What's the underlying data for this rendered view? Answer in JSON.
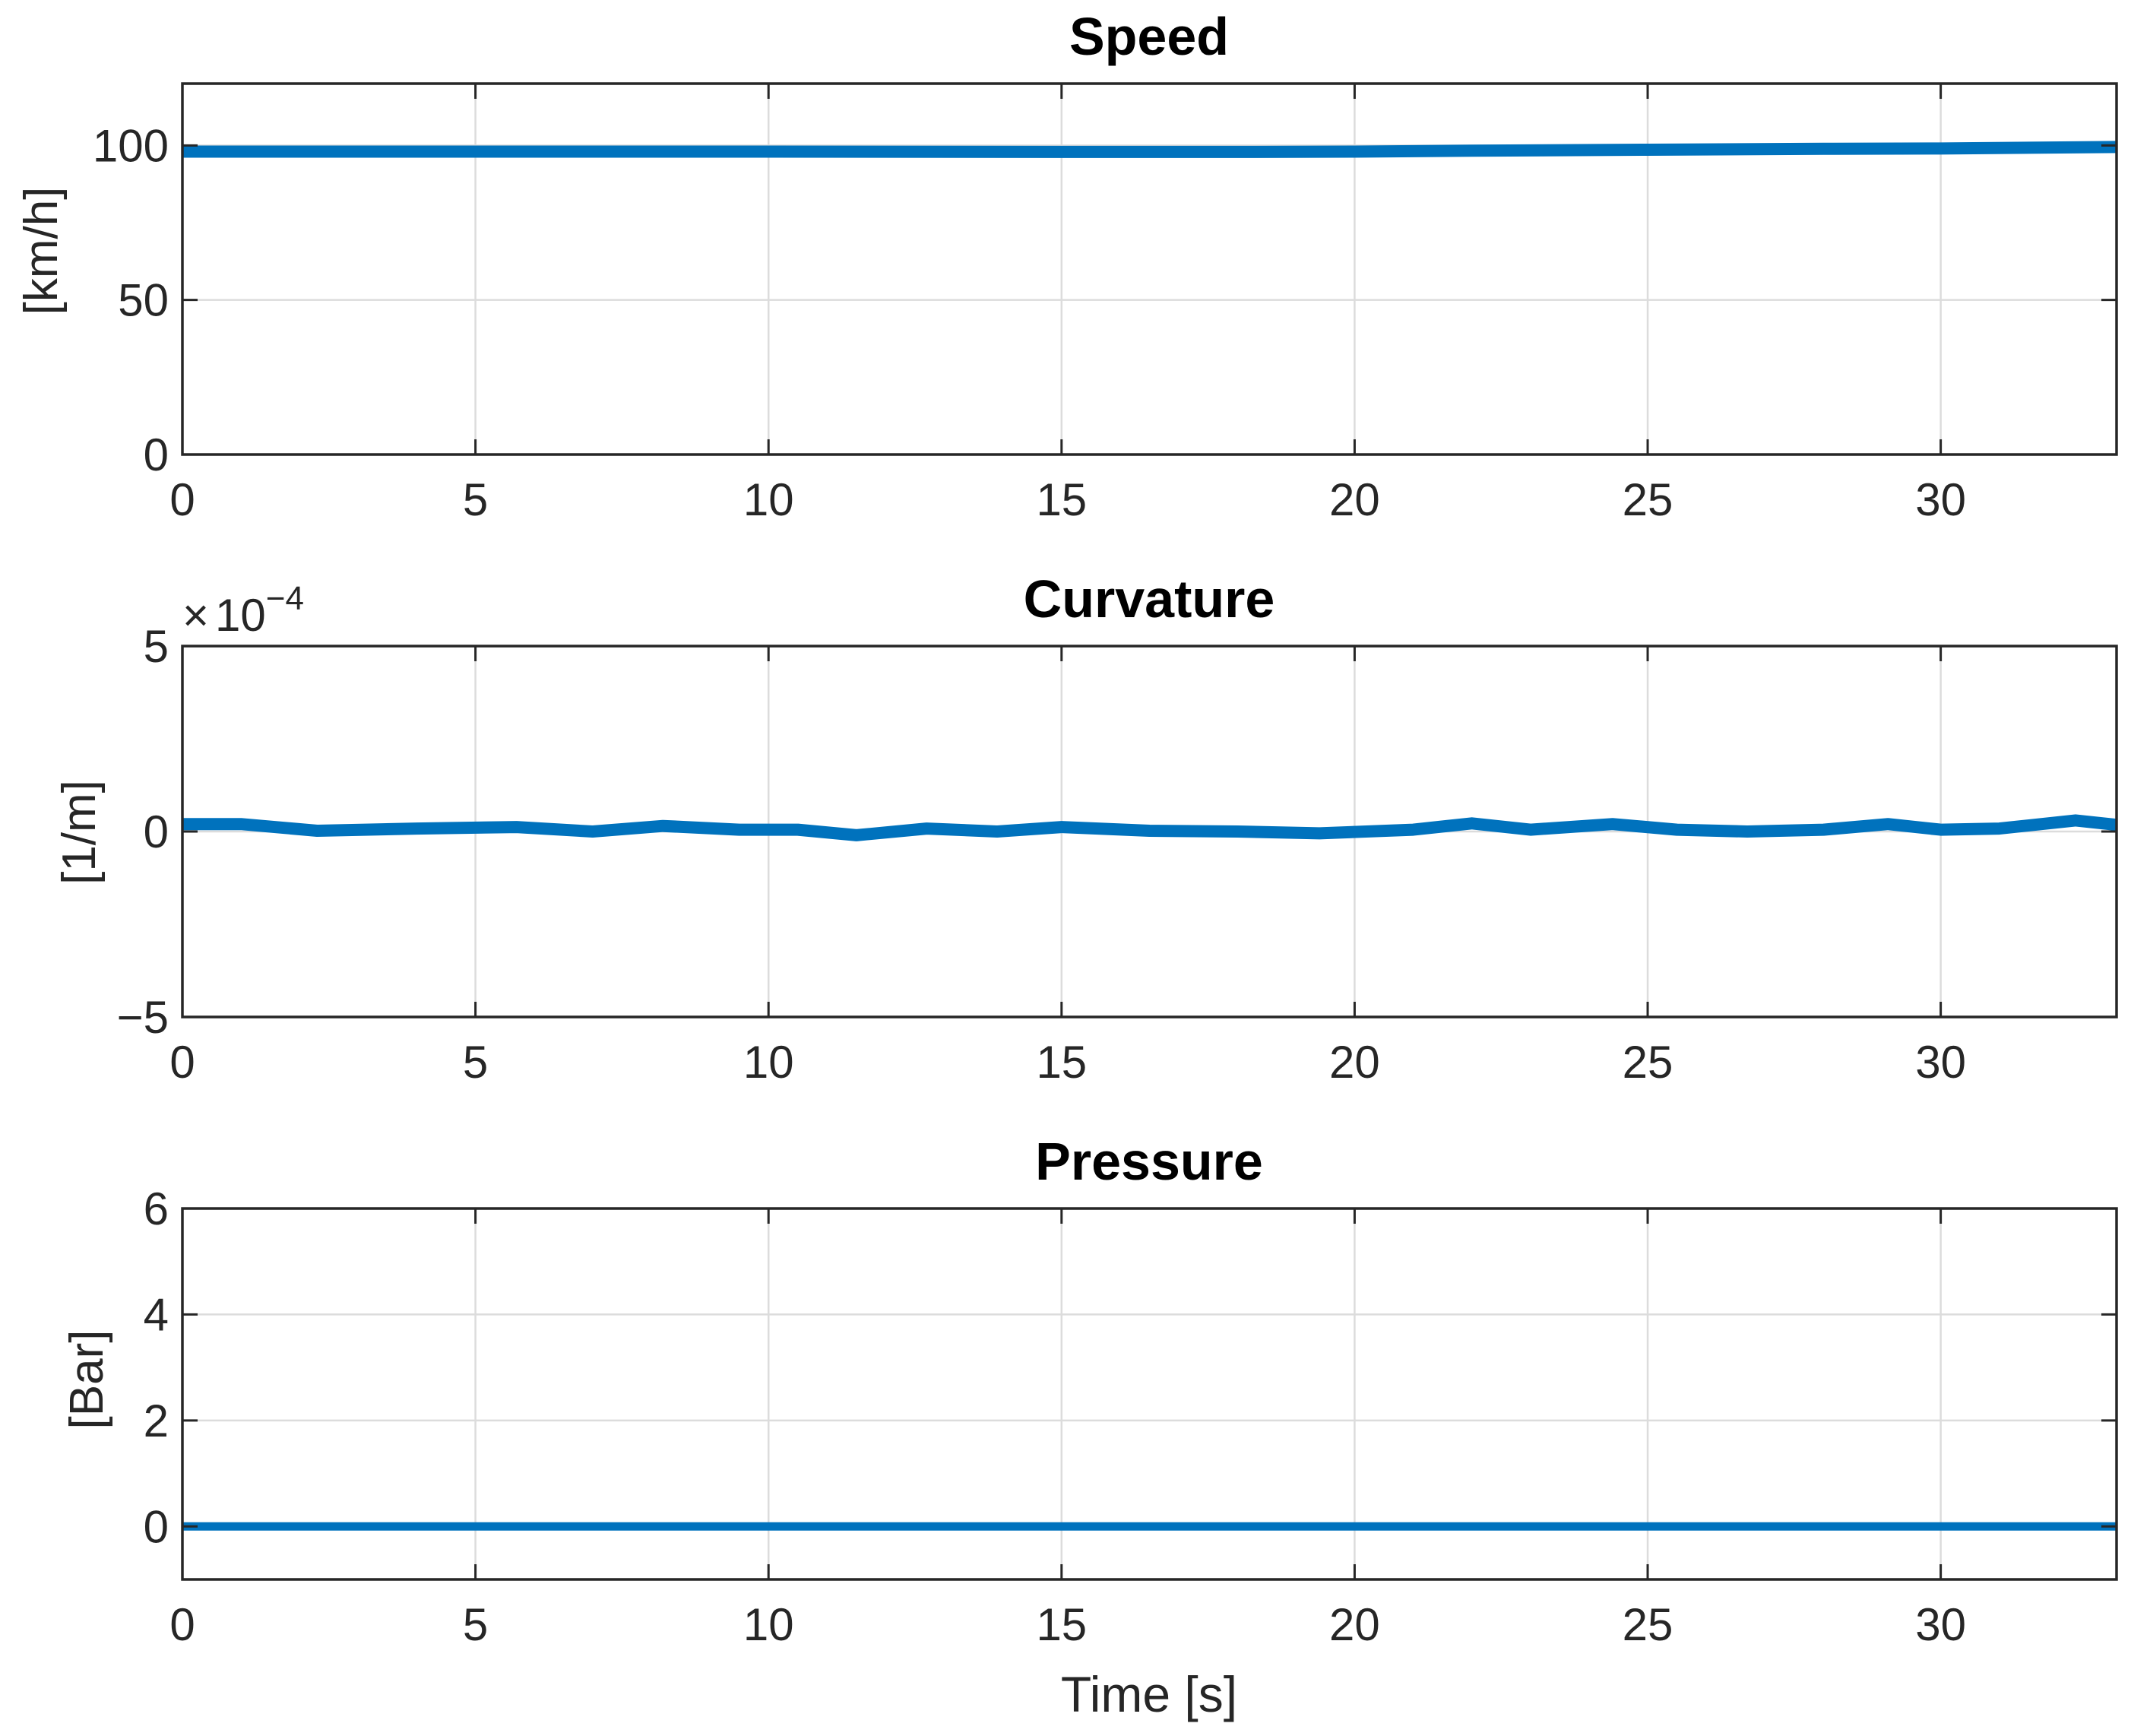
{
  "chart_data": [
    {
      "type": "line",
      "title": "Speed",
      "xlabel": "",
      "ylabel": "[km/h]",
      "xlim": [
        0,
        33
      ],
      "ylim": [
        0,
        120
      ],
      "xticks": [
        0,
        5,
        10,
        15,
        20,
        25,
        30
      ],
      "yticks": [
        0,
        50,
        100
      ],
      "grid": true,
      "series": [
        {
          "name": "Speed",
          "color": "#0072BD",
          "x": [
            0,
            5,
            10,
            15,
            18,
            20,
            22,
            25,
            28,
            30,
            33
          ],
          "y": [
            98,
            98,
            98,
            97.9,
            97.9,
            98,
            98.3,
            98.6,
            98.9,
            99,
            99.5
          ]
        }
      ]
    },
    {
      "type": "line",
      "title": "Curvature",
      "xlabel": "",
      "ylabel": "[1/m]",
      "multiplier": "10",
      "multiplier_exp": "−4",
      "xlim": [
        0,
        33
      ],
      "ylim": [
        -5,
        5
      ],
      "xticks": [
        0,
        5,
        10,
        15,
        20,
        25,
        30
      ],
      "yticks": [
        -5,
        0,
        5
      ],
      "ytick_labels": [
        "−5",
        "0",
        "5"
      ],
      "grid": true,
      "series": [
        {
          "name": "Curvature",
          "color": "#0072BD",
          "x": [
            0,
            1,
            2.3,
            4,
            5.7,
            7,
            8.2,
            9.5,
            10.5,
            11.5,
            12.7,
            13.9,
            15,
            16.5,
            18,
            19.4,
            21,
            22,
            23,
            24.4,
            25.5,
            26.7,
            28,
            29.1,
            30,
            31,
            32.3,
            33
          ],
          "y": [
            0.2,
            0.2,
            0.02,
            0.08,
            0.12,
            0.0,
            0.15,
            0.05,
            0.05,
            -0.1,
            0.08,
            0.0,
            0.12,
            0.02,
            0.0,
            -0.05,
            0.05,
            0.22,
            0.05,
            0.2,
            0.05,
            0.0,
            0.05,
            0.2,
            0.05,
            0.08,
            0.3,
            0.18
          ]
        }
      ]
    },
    {
      "type": "line",
      "title": "Pressure",
      "xlabel": "Time [s]",
      "ylabel": "[Bar]",
      "xlim": [
        0,
        33
      ],
      "ylim": [
        -1,
        6
      ],
      "xticks": [
        0,
        5,
        10,
        15,
        20,
        25,
        30
      ],
      "yticks": [
        0,
        2,
        4,
        6
      ],
      "grid": true,
      "series": [
        {
          "name": "Pressure",
          "color": "#0072BD",
          "x": [
            0,
            33
          ],
          "y": [
            0,
            0
          ]
        }
      ]
    }
  ]
}
